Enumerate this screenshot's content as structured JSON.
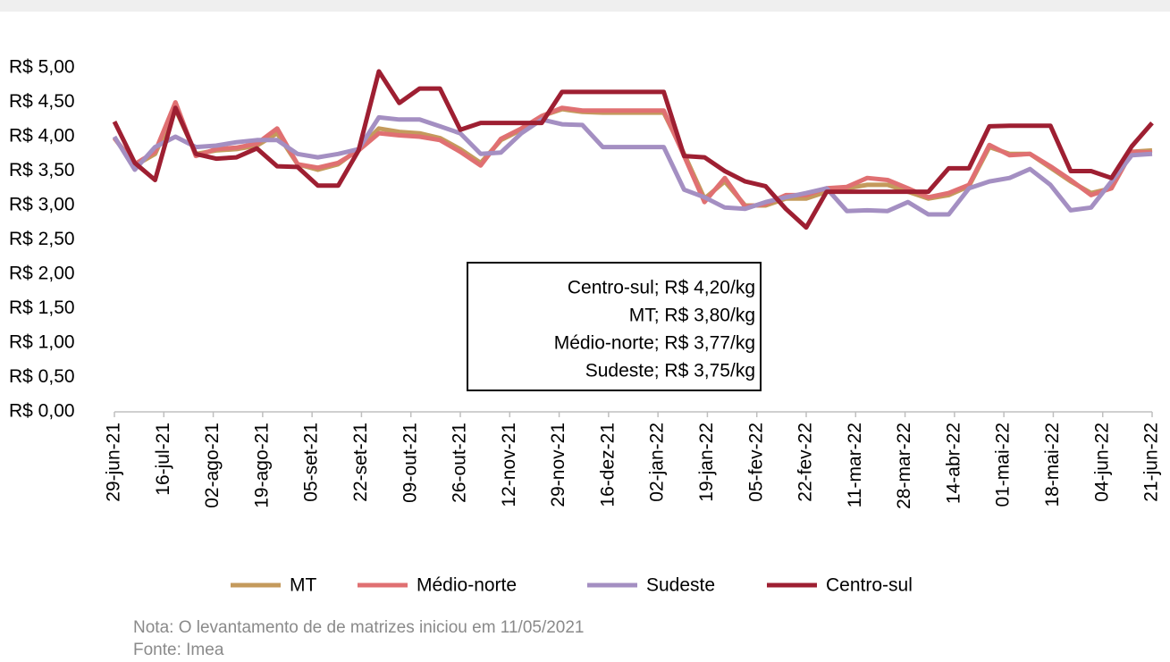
{
  "chart_data": {
    "type": "line",
    "x": [
      0,
      7,
      14,
      21,
      28,
      35,
      42,
      49,
      56,
      63,
      70,
      77,
      84,
      91,
      98,
      105,
      112,
      119,
      126,
      133,
      140,
      147,
      154,
      161,
      168,
      175,
      182,
      189,
      196,
      203,
      210,
      217,
      224,
      231,
      238,
      245,
      252,
      259,
      266,
      273,
      280,
      287,
      294,
      301,
      308,
      315,
      322,
      329,
      336,
      343,
      350,
      357
    ],
    "xlim": [
      0,
      357
    ],
    "xticks": [
      {
        "value": 0,
        "label": "29-jun-21"
      },
      {
        "value": 17,
        "label": "16-jul-21"
      },
      {
        "value": 34,
        "label": "02-ago-21"
      },
      {
        "value": 51,
        "label": "19-ago-21"
      },
      {
        "value": 68,
        "label": "05-set-21"
      },
      {
        "value": 85,
        "label": "22-set-21"
      },
      {
        "value": 102,
        "label": "09-out-21"
      },
      {
        "value": 119,
        "label": "26-out-21"
      },
      {
        "value": 136,
        "label": "12-nov-21"
      },
      {
        "value": 153,
        "label": "29-nov-21"
      },
      {
        "value": 170,
        "label": "16-dez-21"
      },
      {
        "value": 187,
        "label": "02-jan-22"
      },
      {
        "value": 204,
        "label": "19-jan-22"
      },
      {
        "value": 221,
        "label": "05-fev-22"
      },
      {
        "value": 238,
        "label": "22-fev-22"
      },
      {
        "value": 255,
        "label": "11-mar-22"
      },
      {
        "value": 272,
        "label": "28-mar-22"
      },
      {
        "value": 289,
        "label": "14-abr-22"
      },
      {
        "value": 306,
        "label": "01-mai-22"
      },
      {
        "value": 323,
        "label": "18-mai-22"
      },
      {
        "value": 340,
        "label": "04-jun-22"
      },
      {
        "value": 357,
        "label": "21-jun-22"
      }
    ],
    "ylim": [
      0,
      5
    ],
    "yticks": [
      {
        "value": 0,
        "label": "R$ 0,00"
      },
      {
        "value": 0.5,
        "label": "R$ 0,50"
      },
      {
        "value": 1,
        "label": "R$ 1,00"
      },
      {
        "value": 1.5,
        "label": "R$ 1,50"
      },
      {
        "value": 2,
        "label": "R$ 2,00"
      },
      {
        "value": 2.5,
        "label": "R$ 2,50"
      },
      {
        "value": 3,
        "label": "R$ 3,00"
      },
      {
        "value": 3.5,
        "label": "R$ 3,50"
      },
      {
        "value": 4,
        "label": "R$ 4,00"
      },
      {
        "value": 4.5,
        "label": "R$ 4,50"
      },
      {
        "value": 5,
        "label": "R$ 5,00"
      }
    ],
    "grid": false,
    "series": [
      {
        "name": "MT",
        "color": "#c49a5c",
        "values": [
          3.98,
          3.58,
          3.75,
          4.4,
          3.75,
          3.8,
          3.82,
          3.87,
          4.05,
          3.6,
          3.52,
          3.6,
          3.82,
          4.12,
          4.07,
          4.05,
          3.98,
          3.82,
          3.62,
          3.95,
          4.1,
          4.3,
          4.4,
          4.36,
          4.35,
          4.35,
          4.35,
          4.35,
          3.75,
          3.1,
          3.35,
          3.0,
          3.0,
          3.1,
          3.1,
          3.2,
          3.25,
          3.3,
          3.3,
          3.2,
          3.1,
          3.15,
          3.28,
          3.85,
          3.75,
          3.75,
          3.55,
          3.35,
          3.18,
          3.25,
          3.78,
          3.8
        ]
      },
      {
        "name": "Médio-norte",
        "color": "#e07072",
        "values": [
          3.98,
          3.6,
          3.78,
          4.5,
          3.72,
          3.82,
          3.84,
          3.9,
          4.12,
          3.6,
          3.55,
          3.62,
          3.8,
          4.05,
          4.02,
          4.0,
          3.95,
          3.78,
          3.58,
          3.97,
          4.12,
          4.3,
          4.42,
          4.38,
          4.38,
          4.38,
          4.38,
          4.38,
          3.72,
          3.05,
          3.4,
          2.98,
          3.02,
          3.15,
          3.15,
          3.25,
          3.27,
          3.4,
          3.37,
          3.25,
          3.12,
          3.18,
          3.3,
          3.88,
          3.73,
          3.75,
          3.57,
          3.37,
          3.15,
          3.25,
          3.78,
          3.77
        ]
      },
      {
        "name": "Sudeste",
        "color": "#a48fc2",
        "values": [
          4.0,
          3.52,
          3.85,
          4.0,
          3.85,
          3.87,
          3.92,
          3.95,
          3.95,
          3.75,
          3.7,
          3.75,
          3.82,
          4.28,
          4.25,
          4.25,
          4.15,
          4.05,
          3.75,
          3.77,
          4.05,
          4.25,
          4.18,
          4.17,
          3.85,
          3.85,
          3.85,
          3.85,
          3.23,
          3.12,
          2.97,
          2.95,
          3.05,
          3.12,
          3.18,
          3.25,
          2.92,
          2.93,
          2.92,
          3.05,
          2.87,
          2.87,
          3.25,
          3.35,
          3.4,
          3.53,
          3.3,
          2.93,
          2.97,
          3.35,
          3.73,
          3.75
        ]
      },
      {
        "name": "Centro-sul",
        "color": "#9e1f32",
        "values": [
          4.22,
          3.62,
          3.37,
          4.42,
          3.75,
          3.68,
          3.7,
          3.83,
          3.57,
          3.56,
          3.29,
          3.29,
          3.8,
          4.95,
          4.49,
          4.7,
          4.7,
          4.1,
          4.2,
          4.2,
          4.2,
          4.2,
          4.65,
          4.65,
          4.65,
          4.65,
          4.65,
          4.65,
          3.72,
          3.7,
          3.5,
          3.35,
          3.28,
          2.95,
          2.68,
          3.2,
          3.2,
          3.2,
          3.2,
          3.2,
          3.2,
          3.54,
          3.54,
          4.15,
          4.16,
          4.16,
          4.16,
          3.5,
          3.5,
          3.4,
          3.86,
          4.2
        ]
      }
    ],
    "annotation": [
      "Centro-sul; R$ 4,20/kg",
      "MT; R$ 3,80/kg",
      "Médio-norte; R$ 3,77/kg",
      "Sudeste; R$ 3,75/kg"
    ],
    "legend": "bottom",
    "notes": [
      "Nota: O levantamento de de matrizes iniciou em 11/05/2021",
      "Fonte: Imea"
    ]
  }
}
